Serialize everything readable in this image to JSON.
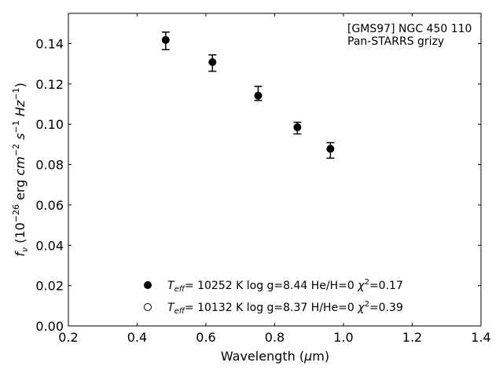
{
  "chart_data": {
    "type": "scatter",
    "xlim": [
      0.2,
      1.4
    ],
    "ylim": [
      0.0,
      0.155
    ],
    "xticks": [
      0.2,
      0.4,
      0.6,
      0.8,
      1.0,
      1.2,
      1.4
    ],
    "yticks": [
      0.0,
      0.02,
      0.04,
      0.06,
      0.08,
      0.1,
      0.12,
      0.14
    ],
    "xtick_labels": [
      "0.2",
      "0.4",
      "0.6",
      "0.8",
      "1.0",
      "1.2",
      "1.4"
    ],
    "ytick_labels": [
      "0.00",
      "0.02",
      "0.04",
      "0.06",
      "0.08",
      "0.10",
      "0.12",
      "0.14"
    ],
    "xlabel": {
      "pre": "Wavelength (",
      "sym": "μ",
      "post": "m)"
    },
    "ylabel": "f_nu (10^-26 erg cm^-2 s^-1 Hz^-1)",
    "annotation": [
      "[GMS97] NGC 450 110",
      "Pan-STARRS grizy"
    ],
    "grid": false,
    "legend_position": "bottom-center",
    "series": [
      {
        "marker": "filled-circle",
        "x": [
          0.483,
          0.619,
          0.752,
          0.866,
          0.962
        ],
        "y": [
          0.1418,
          0.1308,
          0.1142,
          0.0985,
          0.0878
        ],
        "yerr_low": [
          0.0048,
          0.0045,
          0.0024,
          0.0033,
          0.0046
        ],
        "yerr_high": [
          0.0039,
          0.0036,
          0.0046,
          0.0025,
          0.0031
        ],
        "legend": {
          "teff_value": "= 10252 K",
          "logg": "log g=8.44",
          "ratio": "He/H=0",
          "chi2_value": "=0.17"
        }
      },
      {
        "marker": "open-circle",
        "x": [],
        "y": [],
        "legend": {
          "teff_value": "= 10132 K",
          "logg": "log g=8.37",
          "ratio": "H/He=0",
          "chi2_value": "=0.39"
        }
      }
    ]
  }
}
